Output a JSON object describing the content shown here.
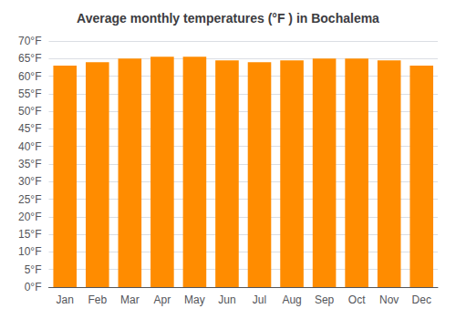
{
  "chart_data": {
    "type": "bar",
    "title": "Average monthly temperatures (°F ) in Bochalema",
    "categories": [
      "Jan",
      "Feb",
      "Mar",
      "Apr",
      "May",
      "Jun",
      "Jul",
      "Aug",
      "Sep",
      "Oct",
      "Nov",
      "Dec"
    ],
    "values": [
      63,
      64,
      65,
      65.5,
      65.5,
      64.5,
      64,
      64.5,
      65,
      65,
      64.5,
      63
    ],
    "color": "#FF8C00",
    "ylim": [
      0,
      70
    ],
    "yticks": [
      {
        "value": 0,
        "label": "0°F"
      },
      {
        "value": 5,
        "label": "5°F"
      },
      {
        "value": 10,
        "label": "10°F"
      },
      {
        "value": 15,
        "label": "15°F"
      },
      {
        "value": 20,
        "label": "20°F"
      },
      {
        "value": 25,
        "label": "25°F"
      },
      {
        "value": 30,
        "label": "30°F"
      },
      {
        "value": 35,
        "label": "35°F"
      },
      {
        "value": 40,
        "label": "40°F"
      },
      {
        "value": 45,
        "label": "45°F"
      },
      {
        "value": 50,
        "label": "50°F"
      },
      {
        "value": 55,
        "label": "55°F"
      },
      {
        "value": 60,
        "label": "60°F"
      },
      {
        "value": 65,
        "label": "65°F"
      },
      {
        "value": 70,
        "label": "70°F"
      }
    ],
    "grid": true
  }
}
